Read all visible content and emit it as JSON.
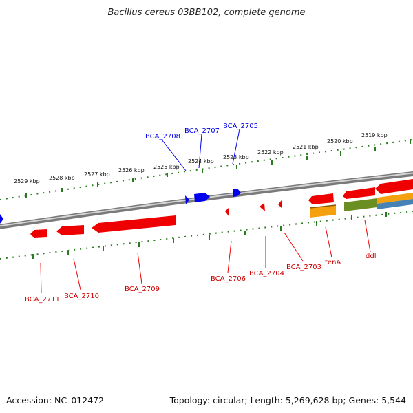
{
  "title": "Bacillus cereus 03BB102, complete genome",
  "footer": {
    "accession": "Accession: NC_012472",
    "summary": "Topology: circular; Length: 5,269,628 bp; Genes: 5,544"
  },
  "colors": {
    "forward": "#0000ee",
    "reverse": "#ee0000",
    "ticks": "#2a7a1f",
    "backbone": "#808080",
    "orange": "#f5a10f",
    "olive": "#6b8e23",
    "steel": "#4682b4"
  },
  "scale_labels": [
    "2529 kbp",
    "2528 kbp",
    "2527 kbp",
    "2526 kbp",
    "2525 kbp",
    "2524 kbp",
    "2523 kbp",
    "2522 kbp",
    "2521 kbp",
    "2520 kbp",
    "2519 kbp"
  ],
  "forward_gene_labels": [
    "BCA_2708",
    "BCA_2707",
    "BCA_2705"
  ],
  "reverse_gene_labels": [
    "BCA_2711",
    "BCA_2710",
    "BCA_2709",
    "BCA_2706",
    "BCA_2704",
    "BCA_2703",
    "tenA",
    "ddl"
  ]
}
